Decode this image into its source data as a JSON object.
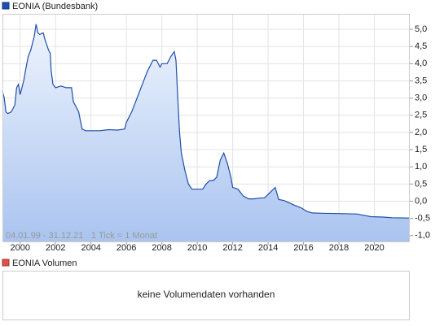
{
  "chart_data": {
    "type": "area",
    "title": "EONIA (Bundesbank)",
    "period_label": "04.01.99 - 31.12.21",
    "tick_label": "1 Tick = 1 Monat",
    "x": [
      1999.0,
      1999.1,
      1999.2,
      1999.3,
      1999.5,
      1999.7,
      1999.8,
      1999.9,
      2000.0,
      2000.2,
      2000.3,
      2000.45,
      2000.6,
      2000.8,
      2000.9,
      2001.0,
      2001.1,
      2001.3,
      2001.4,
      2001.6,
      2001.7,
      2001.75,
      2001.85,
      2002.0,
      2002.3,
      2002.6,
      2002.9,
      2003.0,
      2003.3,
      2003.5,
      2003.7,
      2004.0,
      2004.5,
      2005.0,
      2005.5,
      2005.9,
      2006.0,
      2006.3,
      2006.6,
      2006.9,
      2007.2,
      2007.5,
      2007.7,
      2007.9,
      2008.0,
      2008.3,
      2008.5,
      2008.7,
      2008.8,
      2008.9,
      2009.0,
      2009.1,
      2009.3,
      2009.5,
      2009.7,
      2010.0,
      2010.3,
      2010.5,
      2010.7,
      2010.9,
      2011.1,
      2011.3,
      2011.5,
      2011.7,
      2011.9,
      2012.0,
      2012.3,
      2012.6,
      2012.9,
      2013.2,
      2013.5,
      2013.8,
      2014.0,
      2014.2,
      2014.4,
      2014.6,
      2014.9,
      2015.2,
      2015.5,
      2015.9,
      2016.2,
      2016.5,
      2017.0,
      2018.0,
      2019.0,
      2019.8,
      2020.5,
      2021.0,
      2021.99
    ],
    "series": [
      {
        "name": "EONIA (Bundesbank)",
        "color": "#1f4fa8",
        "values": [
          3.2,
          3.0,
          2.6,
          2.55,
          2.6,
          2.8,
          3.3,
          3.4,
          3.1,
          3.5,
          3.8,
          4.2,
          4.4,
          4.8,
          5.15,
          4.9,
          4.85,
          4.9,
          4.7,
          4.4,
          4.3,
          3.8,
          3.4,
          3.3,
          3.35,
          3.3,
          3.3,
          2.9,
          2.6,
          2.1,
          2.05,
          2.05,
          2.05,
          2.08,
          2.07,
          2.1,
          2.3,
          2.6,
          3.0,
          3.4,
          3.8,
          4.1,
          4.1,
          3.9,
          4.0,
          4.0,
          4.2,
          4.35,
          4.1,
          3.0,
          2.0,
          1.4,
          0.9,
          0.5,
          0.35,
          0.35,
          0.35,
          0.5,
          0.6,
          0.6,
          0.7,
          1.2,
          1.4,
          1.1,
          0.7,
          0.4,
          0.35,
          0.15,
          0.07,
          0.07,
          0.09,
          0.1,
          0.2,
          0.3,
          0.4,
          0.05,
          0.02,
          -0.05,
          -0.12,
          -0.2,
          -0.3,
          -0.34,
          -0.35,
          -0.36,
          -0.37,
          -0.45,
          -0.46,
          -0.48,
          -0.49
        ]
      }
    ],
    "xlim": [
      1999.0,
      2022.0
    ],
    "xticks": [
      2000,
      2002,
      2004,
      2006,
      2008,
      2010,
      2012,
      2014,
      2016,
      2018,
      2020
    ],
    "ylim": [
      -1.17,
      5.45
    ],
    "yticks": [
      {
        "value": -1,
        "label": "-1,0"
      },
      {
        "value": -0.5,
        "label": "-0,5"
      },
      {
        "value": 0,
        "label": "0,0"
      },
      {
        "value": 0.5,
        "label": "0,5"
      },
      {
        "value": 1,
        "label": "1,0"
      },
      {
        "value": 1.5,
        "label": "1,5"
      },
      {
        "value": 2,
        "label": "2,0"
      },
      {
        "value": 2.5,
        "label": "2,5"
      },
      {
        "value": 3,
        "label": "3,0"
      },
      {
        "value": 3.5,
        "label": "3,5"
      },
      {
        "value": 4,
        "label": "4,0"
      },
      {
        "value": 4.5,
        "label": "4,5"
      },
      {
        "value": 5,
        "label": "5,0"
      }
    ],
    "grid": true
  },
  "volume_panel": {
    "title": "EONIA Volumen",
    "color": "#d9534f",
    "message": "keine Volumendaten vorhanden"
  }
}
